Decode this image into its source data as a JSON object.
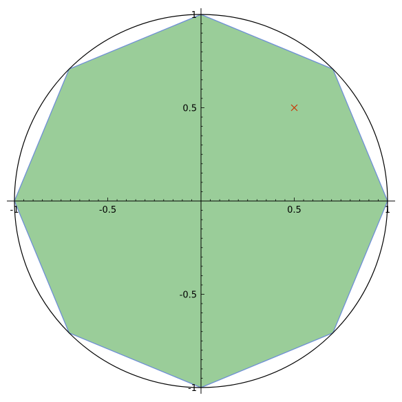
{
  "chart_data": {
    "type": "scatter",
    "title": "",
    "xlabel": "",
    "ylabel": "",
    "xlim": [
      -1,
      1
    ],
    "ylim": [
      -1,
      1
    ],
    "grid": false,
    "x_ticks": [
      {
        "value": -1,
        "label": "-1"
      },
      {
        "value": -0.5,
        "label": "-0.5"
      },
      {
        "value": 0.5,
        "label": "0.5"
      },
      {
        "value": 1,
        "label": "1"
      }
    ],
    "y_ticks": [
      {
        "value": 1,
        "label": "1"
      },
      {
        "value": 0.5,
        "label": "0.5"
      },
      {
        "value": -0.5,
        "label": "-0.5"
      },
      {
        "value": -1,
        "label": "-1"
      }
    ],
    "circle": {
      "center": [
        0,
        0
      ],
      "radius": 1,
      "color": "#000000"
    },
    "polygon": {
      "sides": 8,
      "fill": "#9acd99",
      "stroke": "#6f8fd6",
      "vertices": [
        [
          1,
          0
        ],
        [
          0.7071,
          0.7071
        ],
        [
          0,
          1
        ],
        [
          -0.7071,
          0.7071
        ],
        [
          -1,
          0
        ],
        [
          -0.7071,
          -0.7071
        ],
        [
          0,
          -1
        ],
        [
          0.7071,
          -0.7071
        ]
      ]
    },
    "point": {
      "x": 0.5,
      "y": 0.5,
      "marker": "x",
      "color": "#cc3300"
    }
  }
}
